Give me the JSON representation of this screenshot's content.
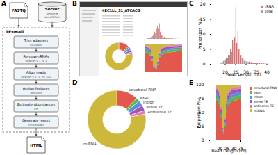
{
  "labels": [
    "A",
    "B",
    "C",
    "D",
    "E"
  ],
  "workflow": {
    "title": "TEsmall",
    "inputs": [
      {
        "label": "FASTQ"
      },
      {
        "label": "Server",
        "details": [
          "genome",
          "annotation"
        ]
      }
    ],
    "steps": [
      {
        "label": "Trim adapters",
        "tool": "cutadapt"
      },
      {
        "label": "Remove rRNAs",
        "tool": "bowtie -v 1 -k 1"
      },
      {
        "label": "Align reads",
        "tool": "bowtie -v 1 -a -m 100"
      },
      {
        "label": "Assign features",
        "tool": "bedtools"
      },
      {
        "label": "Estimate abundances",
        "tool": "EM"
      },
      {
        "label": "Generate report",
        "tool": "rmarkdown"
      }
    ],
    "output": "HTML"
  },
  "report": {
    "title": "4EC1LL_S1_ATCACG"
  },
  "chart_data": [
    {
      "type": "bar",
      "x_label": "Read Length (nt)",
      "y_label": "Proportion (%)",
      "categories": [
        18,
        19,
        20,
        21,
        22,
        23,
        24,
        25,
        26,
        27,
        28,
        29,
        30,
        31,
        32,
        33,
        34,
        35,
        36,
        37,
        38,
        39,
        40
      ],
      "series": [
        {
          "name": "rRNA",
          "color": "#e86a6a",
          "values": [
            0.3,
            0.5,
            1,
            2,
            3,
            5,
            8,
            9,
            7,
            5,
            3,
            2,
            1.5,
            1,
            0.8,
            0.6,
            0.5,
            0.4,
            0.3,
            0.3,
            0.2,
            0.2,
            0.1
          ]
        },
        {
          "name": "total",
          "color": "#a0a0a0",
          "values": [
            0.5,
            1,
            1.5,
            2,
            3,
            4,
            7,
            19,
            11,
            5,
            2,
            1,
            0.8,
            0.6,
            0.5,
            0.4,
            0.3,
            0.3,
            0.2,
            0.2,
            0.1,
            0.1,
            0.1
          ]
        }
      ],
      "ylim": [
        0,
        20
      ],
      "yticks": [
        0,
        5,
        10,
        15,
        20
      ],
      "xticks": [
        20,
        25,
        30,
        35,
        40
      ],
      "stacked": false,
      "legend": "top-right"
    },
    {
      "type": "donut",
      "categories": [
        "structural RNA",
        "exon",
        "intron",
        "sense TE",
        "antisense TE",
        "miRNA"
      ],
      "values": [
        12,
        2,
        3,
        3,
        2,
        78
      ],
      "colors": [
        "#e4574d",
        "#58b947",
        "#5b8fd6",
        "#9b59b6",
        "#e377c2",
        "#cdb83c"
      ]
    },
    {
      "type": "bar",
      "stacked": true,
      "x_label": "Read Length (nt)",
      "y_label": "Proportion (%)",
      "categories": [
        18,
        19,
        20,
        21,
        22,
        23,
        24,
        25,
        26,
        27,
        28,
        29,
        30,
        31,
        32,
        33,
        34,
        35
      ],
      "series": [
        {
          "name": "structural RNA",
          "color": "#e4574d",
          "values": [
            70,
            65,
            60,
            40,
            15,
            12,
            25,
            50,
            62,
            65,
            68,
            70,
            70,
            72,
            72,
            73,
            74,
            74
          ]
        },
        {
          "name": "exon",
          "color": "#58b947",
          "values": [
            8,
            8,
            7,
            5,
            3,
            2,
            3,
            5,
            6,
            7,
            7,
            7,
            8,
            7,
            8,
            7,
            7,
            7
          ]
        },
        {
          "name": "intron",
          "color": "#5b8fd6",
          "values": [
            7,
            7,
            6,
            5,
            3,
            2,
            4,
            5,
            6,
            6,
            6,
            6,
            6,
            6,
            6,
            6,
            6,
            6
          ]
        },
        {
          "name": "sense TE",
          "color": "#9b59b6",
          "values": [
            6,
            7,
            7,
            6,
            2,
            2,
            5,
            6,
            7,
            8,
            7,
            7,
            7,
            6,
            6,
            6,
            6,
            6
          ]
        },
        {
          "name": "antisense TE",
          "color": "#e377c2",
          "values": [
            4,
            5,
            5,
            4,
            2,
            2,
            3,
            4,
            4,
            4,
            4,
            4,
            4,
            4,
            4,
            4,
            4,
            4
          ]
        },
        {
          "name": "miRNA",
          "color": "#cdb83c",
          "values": [
            5,
            8,
            15,
            40,
            75,
            80,
            60,
            30,
            15,
            10,
            8,
            6,
            5,
            5,
            4,
            4,
            3,
            3
          ]
        }
      ],
      "ylim": [
        0,
        100
      ],
      "yticks": [
        0,
        25,
        50,
        75,
        100
      ],
      "xticks": [
        20,
        25,
        30,
        35
      ],
      "legend": "right"
    }
  ]
}
